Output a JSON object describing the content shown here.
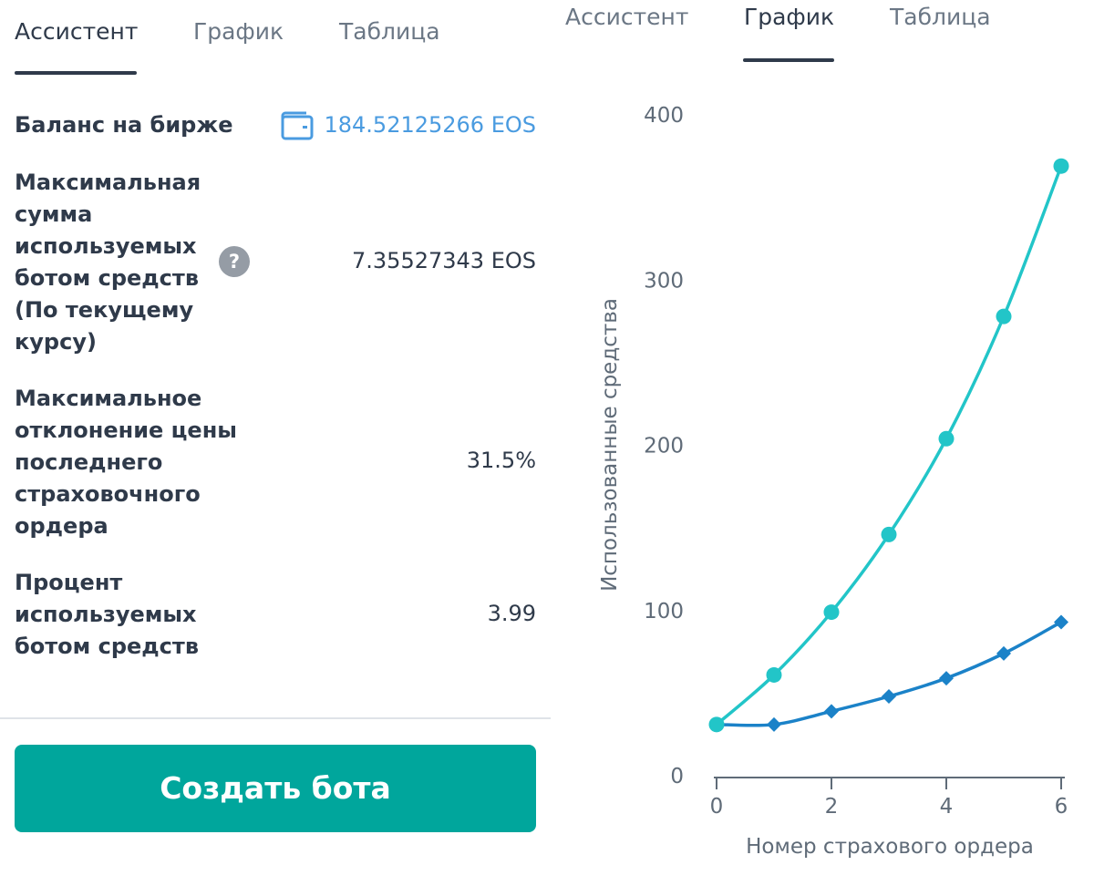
{
  "left": {
    "tabs": [
      {
        "label": "Ассистент",
        "active": true
      },
      {
        "label": "График",
        "active": false
      },
      {
        "label": "Таблица",
        "active": false
      }
    ],
    "rows": [
      {
        "label": "Баланс на бирже",
        "value": "184.52125266 EOS",
        "icon": "wallet-icon"
      },
      {
        "label": "Максимальная сумма используемых ботом средств (По текущему курсу)",
        "value": "7.35527343 EOS",
        "help": "?"
      },
      {
        "label": "Максимальное отклонение цены последнего страховочного ордера",
        "value": "31.5%"
      },
      {
        "label": "Процент используемых ботом средств",
        "value": "3.99"
      }
    ],
    "create_button": "Создать бота"
  },
  "right": {
    "tabs": [
      {
        "label": "Ассистент",
        "active": false
      },
      {
        "label": "График",
        "active": true
      },
      {
        "label": "Таблица",
        "active": false
      }
    ]
  },
  "colors": {
    "accent": "#00a69c",
    "link": "#4a9be0",
    "series1": "#22c5c8",
    "series2": "#1b82c8"
  },
  "chart_data": {
    "type": "line",
    "xlabel": "Номер страхового ордера",
    "ylabel": "Использованные средства",
    "xlim": [
      0,
      6
    ],
    "ylim": [
      0,
      400
    ],
    "xticks": [
      0,
      2,
      4,
      6
    ],
    "yticks": [
      0,
      100,
      200,
      300,
      400
    ],
    "grid": false,
    "x": [
      0,
      1,
      2,
      3,
      4,
      5,
      6
    ],
    "series": [
      {
        "marker": "circle",
        "color": "#22c5c8",
        "values": [
          31,
          61,
          99,
          146,
          204,
          278,
          369
        ]
      },
      {
        "marker": "diamond",
        "color": "#1b82c8",
        "values": [
          31,
          31,
          39,
          48,
          59,
          74,
          93
        ]
      }
    ]
  }
}
